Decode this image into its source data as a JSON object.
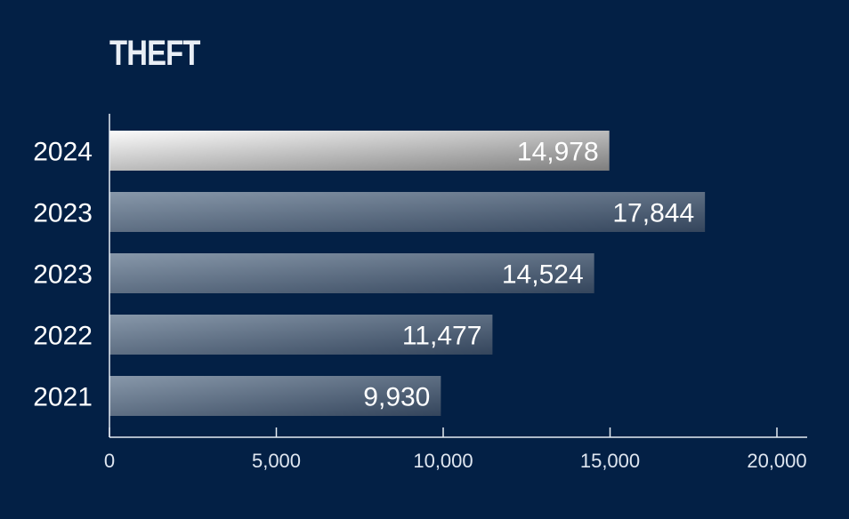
{
  "chart_data": {
    "type": "bar",
    "orientation": "horizontal",
    "title": "THEFT",
    "categories": [
      "2024",
      "2023",
      "2023",
      "2022",
      "2021"
    ],
    "values": [
      14978,
      17844,
      14524,
      11477,
      9930
    ],
    "value_labels": [
      "14,978",
      "17,844",
      "14,524",
      "11,477",
      "9,930"
    ],
    "xlim": [
      0,
      20000
    ],
    "x_ticks": [
      0,
      5000,
      10000,
      15000,
      20000
    ],
    "x_tick_labels": [
      "0",
      "5,000",
      "10,000",
      "15,000",
      "20,000"
    ],
    "grid": false,
    "highlight_index": 0
  },
  "colors": {
    "background": "#032045",
    "axis": "#e6ecf3",
    "text": "#ffffff",
    "bar_highlight_start": "#fbfbfb",
    "bar_highlight_end": "#7e7e7e",
    "bar_start": "#8898aa",
    "bar_end": "#34455c"
  }
}
